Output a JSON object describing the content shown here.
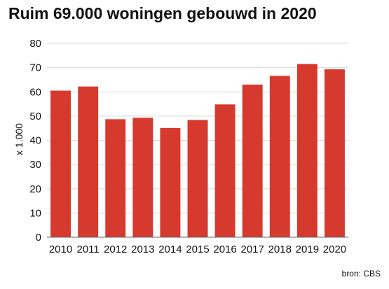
{
  "chart_data": {
    "type": "bar",
    "title": "Ruim 69.000 woningen gebouwd in 2020",
    "xlabel": "",
    "ylabel": "x 1.000",
    "categories": [
      "2010",
      "2011",
      "2012",
      "2013",
      "2014",
      "2015",
      "2016",
      "2017",
      "2018",
      "2019",
      "2020"
    ],
    "values": [
      60.5,
      62.2,
      48.7,
      49.3,
      45.1,
      48.4,
      54.8,
      63.0,
      66.6,
      71.5,
      69.3
    ],
    "ylim": [
      0,
      80
    ],
    "yticks": [
      0,
      10,
      20,
      30,
      40,
      50,
      60,
      70,
      80
    ],
    "grid": true,
    "legend": "none",
    "bar_color": "#d63a2e",
    "grid_color": "#d9d9d9",
    "axis_color": "#666666",
    "source": "bron: CBS"
  }
}
